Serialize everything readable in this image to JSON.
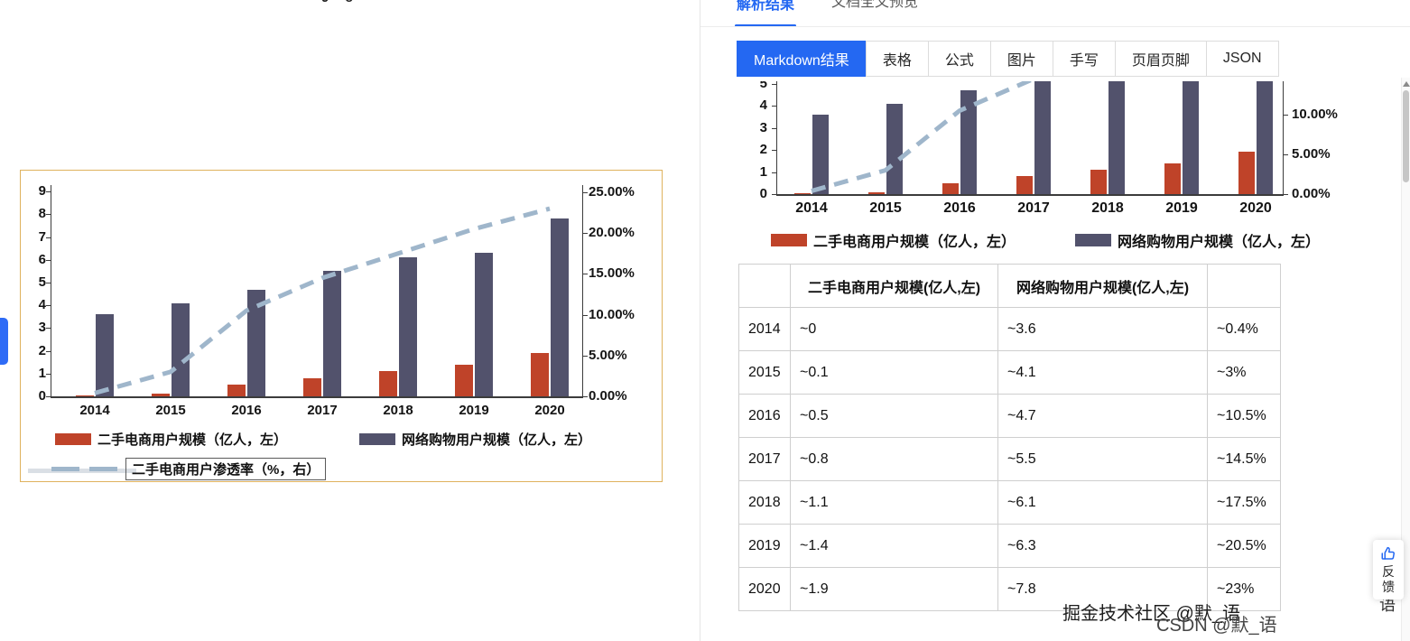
{
  "left_pane": {
    "top_fragment": "9 8"
  },
  "right_pane": {
    "tabs": [
      {
        "label": "解析结果",
        "active": true
      },
      {
        "label": "文档全文预览",
        "active": false
      }
    ],
    "toolbar": {
      "items": [
        "Markdown结果",
        "表格",
        "公式",
        "图片",
        "手写",
        "页眉页脚",
        "JSON"
      ],
      "active_item": "Markdown结果"
    },
    "feedback_label": "反馈"
  },
  "colors": {
    "accent": "#2468f2",
    "figure_border": "#dfb25d",
    "bar_secondhand": "#bf4329",
    "bar_online": "#52526c",
    "line_penetration": "#9fb6cb"
  },
  "chart_data": [
    {
      "id": "source-figure-chart",
      "type": "bar",
      "categories": [
        "2014",
        "2015",
        "2016",
        "2017",
        "2018",
        "2019",
        "2020"
      ],
      "series": [
        {
          "name": "二手电商用户规模（亿人，左）",
          "type": "bar",
          "axis": "left",
          "color": "#bf4329",
          "values": [
            0.05,
            0.1,
            0.5,
            0.8,
            1.1,
            1.4,
            1.9
          ]
        },
        {
          "name": "网络购物用户规模（亿人，左）",
          "type": "bar",
          "axis": "left",
          "color": "#52526c",
          "values": [
            3.6,
            4.1,
            4.7,
            5.5,
            6.1,
            6.3,
            7.8
          ]
        },
        {
          "name": "二手电商用户渗透率（%，右）",
          "type": "line-dashed",
          "axis": "right",
          "color": "#9fb6cb",
          "values": [
            0.4,
            3,
            10.5,
            14.5,
            17.5,
            20.5,
            23
          ]
        }
      ],
      "left_axis": {
        "min": 0,
        "max": 9,
        "ticks": [
          0,
          1,
          2,
          3,
          4,
          5,
          6,
          7,
          8,
          9
        ]
      },
      "right_axis": {
        "min": 0,
        "max": 25,
        "ticks": [
          {
            "v": 0,
            "label": "0.00%"
          },
          {
            "v": 5,
            "label": "5.00%"
          },
          {
            "v": 10,
            "label": "10.00%"
          },
          {
            "v": 15,
            "label": "15.00%"
          },
          {
            "v": 20,
            "label": "20.00%"
          },
          {
            "v": 25,
            "label": "25.00%"
          }
        ]
      },
      "legend_position": "bottom",
      "grid": false
    },
    {
      "id": "markdown-rendered-chart",
      "type": "bar",
      "note": "same chart re-rendered in result panel, top-cropped in viewport",
      "categories": [
        "2014",
        "2015",
        "2016",
        "2017",
        "2018",
        "2019",
        "2020"
      ],
      "series": [
        {
          "name": "二手电商用户规模（亿人，左）",
          "type": "bar",
          "axis": "left",
          "color": "#bf4329",
          "values": [
            0.05,
            0.1,
            0.5,
            0.8,
            1.1,
            1.4,
            1.9
          ]
        },
        {
          "name": "网络购物用户规模（亿人，左）",
          "type": "bar",
          "axis": "left",
          "color": "#52526c",
          "values": [
            3.6,
            4.1,
            4.7,
            5.5,
            6.1,
            6.3,
            7.8
          ]
        },
        {
          "name": "二手电商用户渗透率（%，右）",
          "type": "line-dashed",
          "axis": "right",
          "color": "#9fb6cb",
          "values": [
            0.4,
            3,
            10.5,
            14.5,
            17.5,
            20.5,
            23
          ]
        }
      ],
      "left_axis": {
        "min": 0,
        "max": 9,
        "ticks": [
          0,
          1,
          2,
          3,
          4,
          5
        ]
      },
      "right_axis": {
        "min": 0,
        "max": 25,
        "ticks": [
          {
            "v": 0,
            "label": "0.00%"
          },
          {
            "v": 5,
            "label": "5.00%"
          },
          {
            "v": 10,
            "label": "10.00%"
          }
        ]
      },
      "legend_position": "bottom",
      "grid": false
    }
  ],
  "table": {
    "headers": [
      "",
      "二手电商用户规模(亿人,左)",
      "网络购物用户规模(亿人,左)",
      ""
    ],
    "rows": [
      [
        "2014",
        "~0",
        "~3.6",
        "~0.4%"
      ],
      [
        "2015",
        "~0.1",
        "~4.1",
        "~3%"
      ],
      [
        "2016",
        "~0.5",
        "~4.7",
        "~10.5%"
      ],
      [
        "2017",
        "~0.8",
        "~5.5",
        "~14.5%"
      ],
      [
        "2018",
        "~1.1",
        "~6.1",
        "~17.5%"
      ],
      [
        "2019",
        "~1.4",
        "~6.3",
        "~20.5%"
      ],
      [
        "2020",
        "~1.9",
        "~7.8",
        "~23%"
      ]
    ]
  },
  "watermarks": [
    "掘金技术社区 @默_语",
    "CSDN @默_语",
    "语"
  ]
}
